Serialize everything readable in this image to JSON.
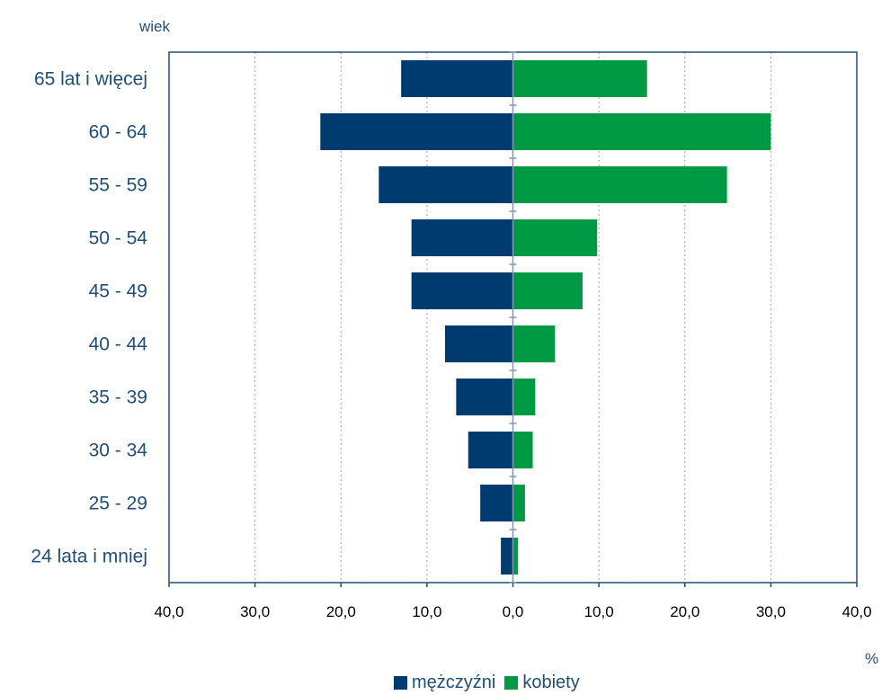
{
  "chart_data": {
    "type": "bar",
    "orientation": "horizontal-pyramid",
    "ylabel": "wiek",
    "xlabel": "%",
    "xlim": [
      -40,
      40
    ],
    "x_ticks": [
      -40,
      -30,
      -20,
      -10,
      0,
      10,
      20,
      30,
      40
    ],
    "x_tick_labels": [
      "40,0",
      "30,0",
      "20,0",
      "10,0",
      "0,0",
      "10,0",
      "20,0",
      "30,0",
      "40,0"
    ],
    "grid": "vertical dotted",
    "legend_position": "bottom",
    "categories": [
      "65 lat i więcej",
      "60 - 64",
      "55 - 59",
      "50 - 54",
      "45 - 49",
      "40 - 44",
      "35 - 39",
      "30 - 34",
      "25 - 29",
      "24 lata i mniej"
    ],
    "series": [
      {
        "name": "mężczyźni",
        "color": "#003b6f",
        "side": "left",
        "values": [
          13.0,
          22.4,
          15.6,
          11.8,
          11.8,
          7.9,
          6.6,
          5.2,
          3.8,
          1.4
        ]
      },
      {
        "name": "kobiety",
        "color": "#009a44",
        "side": "right",
        "values": [
          15.6,
          30.0,
          24.9,
          9.8,
          8.1,
          4.9,
          2.6,
          2.3,
          1.4,
          0.6
        ]
      }
    ]
  }
}
